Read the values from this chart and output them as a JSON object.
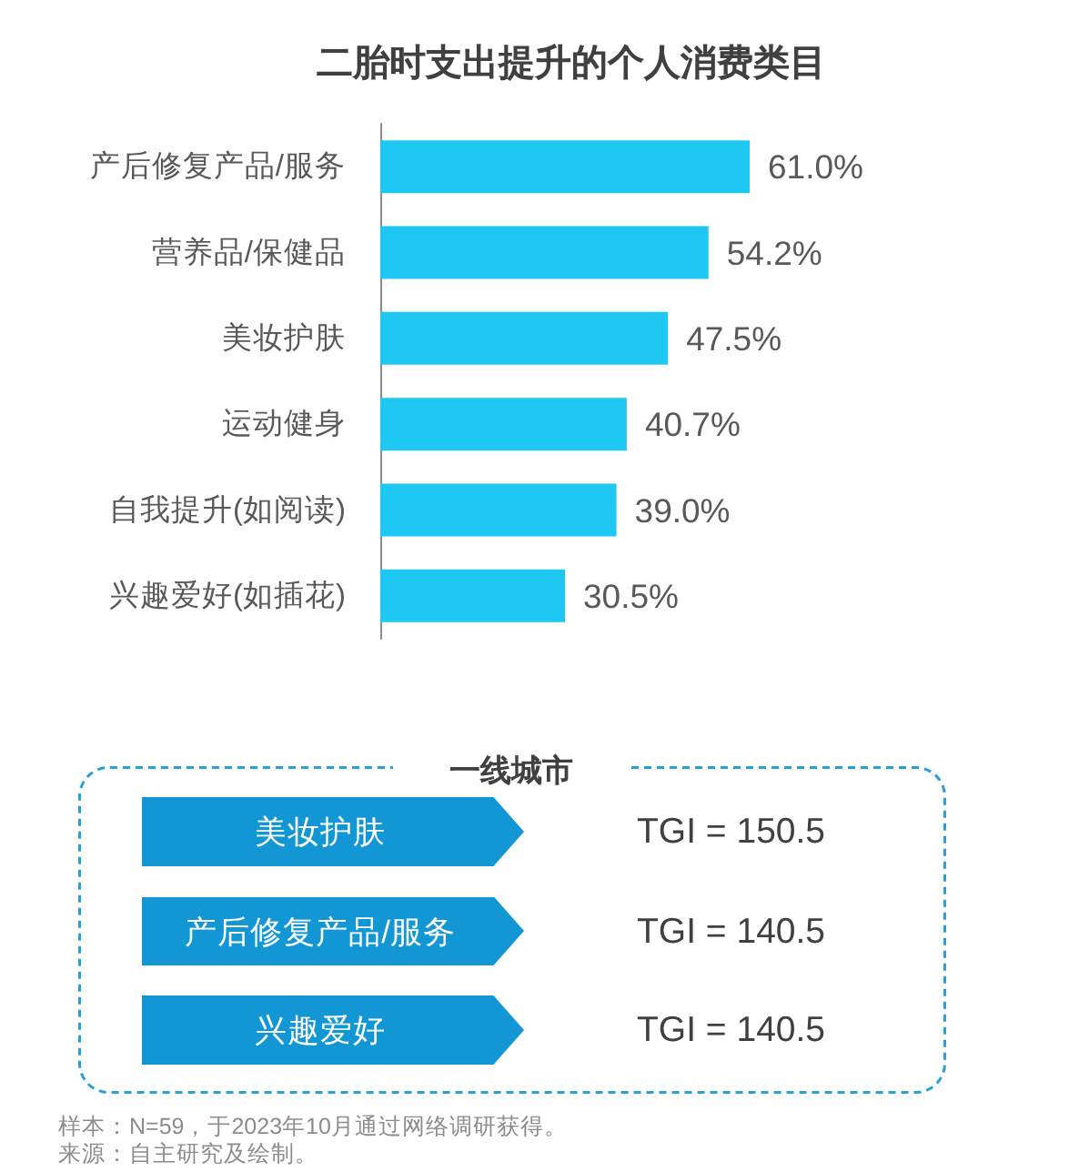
{
  "chart_data": [
    {
      "type": "bar",
      "orientation": "horizontal",
      "title": "二胎时支出提升的个人消费类目",
      "categories": [
        "产后修复产品/服务",
        "营养品/保健品",
        "美妆护肤",
        "运动健身",
        "自我提升(如阅读)",
        "兴趣爱好(如插花)"
      ],
      "values": [
        61.0,
        54.2,
        47.5,
        40.7,
        39.0,
        30.5
      ],
      "value_labels": [
        "61.0%",
        "54.2%",
        "47.5%",
        "40.7%",
        "39.0%",
        "30.5%"
      ],
      "color": "#1fc8f2",
      "tick_labels": "y",
      "annotations": [
        "样本：N=59，于2023年10月通过网络调研获得。",
        "来源：自主研究及绘制。"
      ]
    },
    {
      "type": "other",
      "title": "一线城市",
      "categories": [
        "美妆护肤",
        "产后修复产品/服务",
        "兴趣爱好"
      ],
      "value_labels": [
        "TGI = 150.5",
        "TGI = 140.5",
        "TGI = 140.5"
      ],
      "color": "#1296d4"
    }
  ]
}
